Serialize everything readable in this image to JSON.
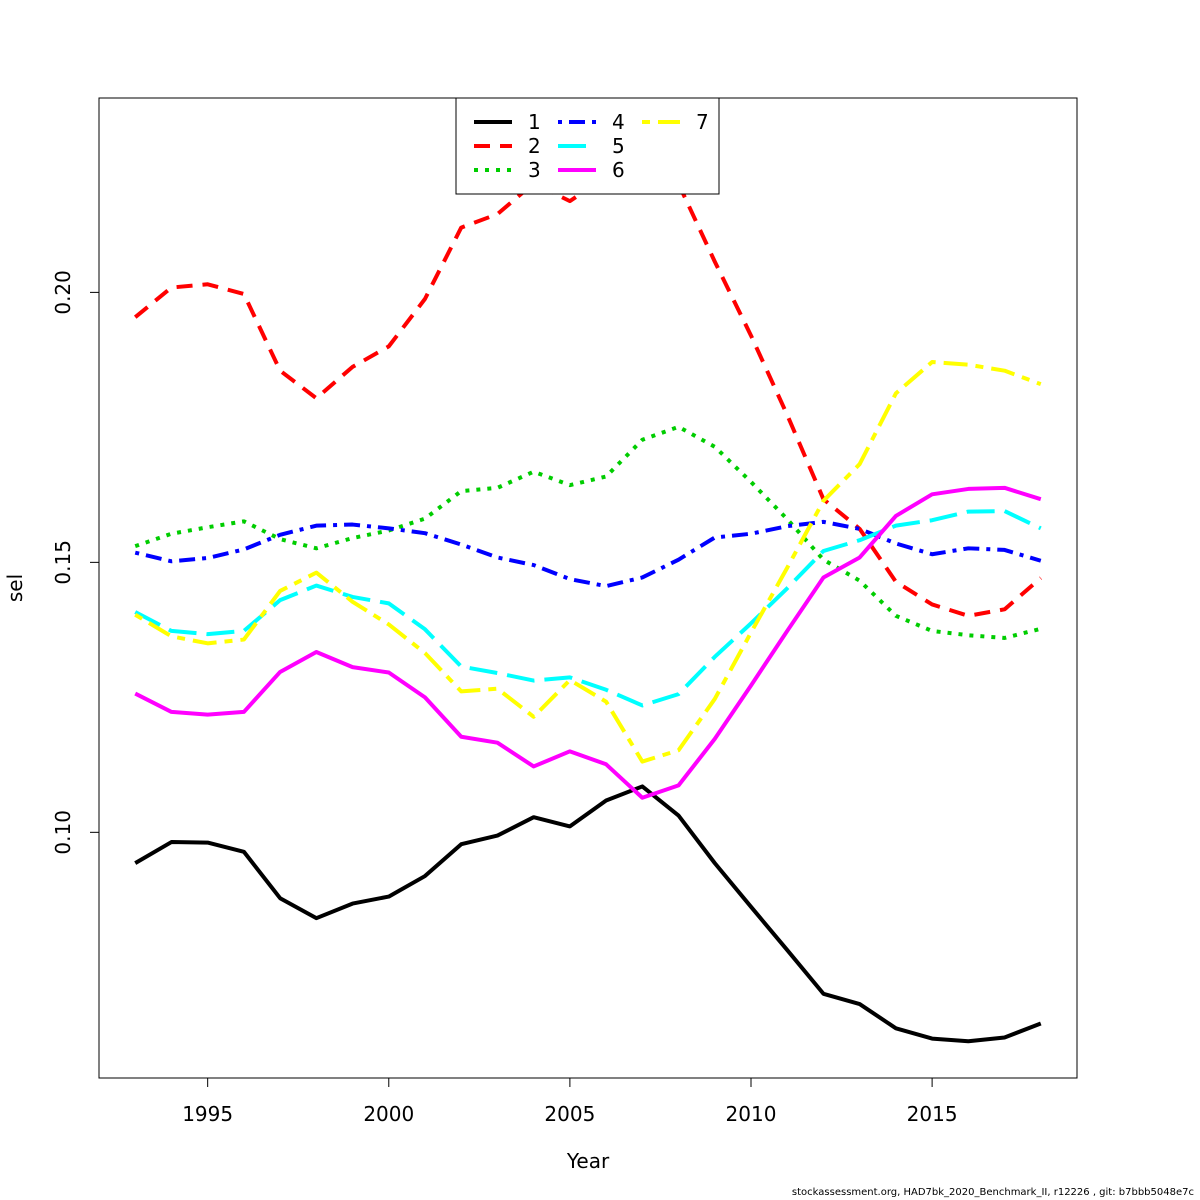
{
  "chart_data": {
    "type": "line",
    "title": "",
    "xlabel": "Year",
    "ylabel": "sel",
    "xlim": [
      1992,
      2019
    ],
    "ylim": [
      0.0545,
      0.236
    ],
    "x_ticks": [
      1995,
      2000,
      2005,
      2010,
      2015
    ],
    "y_ticks": [
      0.1,
      0.15,
      0.2
    ],
    "y_tick_labels": [
      "0.10",
      "0.15",
      "0.20"
    ],
    "grid": false,
    "legend_position": "top",
    "legend_columns": 3,
    "x": [
      1993,
      1994,
      1995,
      1996,
      1997,
      1998,
      1999,
      2000,
      2001,
      2002,
      2003,
      2004,
      2005,
      2006,
      2007,
      2008,
      2009,
      2010,
      2011,
      2012,
      2013,
      2014,
      2015,
      2016,
      2017,
      2018
    ],
    "series": [
      {
        "name": "1",
        "color": "#000000",
        "dash": "solid",
        "values": [
          0.0943,
          0.0982,
          0.0981,
          0.0964,
          0.0878,
          0.0841,
          0.0868,
          0.0881,
          0.0919,
          0.0978,
          0.0994,
          0.1028,
          0.1011,
          0.1059,
          0.1085,
          0.1031,
          0.0943,
          0.0862,
          0.0782,
          0.0701,
          0.0682,
          0.0637,
          0.0618,
          0.0613,
          0.062,
          0.0646
        ]
      },
      {
        "name": "2",
        "color": "#ff0000",
        "dash": "dashed",
        "values": [
          0.1954,
          0.2009,
          0.2015,
          0.1997,
          0.1855,
          0.1804,
          0.1862,
          0.19,
          0.1988,
          0.212,
          0.2145,
          0.2202,
          0.2169,
          0.2215,
          0.2235,
          0.2201,
          0.2057,
          0.192,
          0.1773,
          0.1617,
          0.1562,
          0.1464,
          0.1422,
          0.1401,
          0.1413,
          0.1471
        ]
      },
      {
        "name": "3",
        "color": "#00cd00",
        "dash": "dotted",
        "values": [
          0.153,
          0.1553,
          0.1565,
          0.1576,
          0.1543,
          0.1526,
          0.1545,
          0.1559,
          0.1581,
          0.1632,
          0.1638,
          0.1668,
          0.1643,
          0.1659,
          0.1727,
          0.1751,
          0.1714,
          0.1649,
          0.158,
          0.1505,
          0.1466,
          0.1401,
          0.1373,
          0.1365,
          0.136,
          0.1377
        ]
      },
      {
        "name": "4",
        "color": "#0000ff",
        "dash": "dotdash",
        "values": [
          0.1518,
          0.1502,
          0.1508,
          0.1524,
          0.1551,
          0.1568,
          0.157,
          0.1563,
          0.1554,
          0.1533,
          0.1509,
          0.1495,
          0.1469,
          0.1456,
          0.1472,
          0.1505,
          0.1546,
          0.1553,
          0.1567,
          0.1575,
          0.1562,
          0.1535,
          0.1515,
          0.1526,
          0.1523,
          0.1503
        ]
      },
      {
        "name": "5",
        "color": "#00ffff",
        "dash": "longdash",
        "values": [
          0.1408,
          0.1373,
          0.1367,
          0.1373,
          0.143,
          0.1457,
          0.1436,
          0.1424,
          0.1376,
          0.1307,
          0.1295,
          0.1281,
          0.1287,
          0.1264,
          0.1235,
          0.1256,
          0.1325,
          0.1387,
          0.1452,
          0.1521,
          0.1541,
          0.1568,
          0.1578,
          0.1594,
          0.1595,
          0.1563
        ]
      },
      {
        "name": "6",
        "color": "#ff00ff",
        "dash": "solid",
        "values": [
          0.1257,
          0.1223,
          0.1218,
          0.1223,
          0.1297,
          0.1334,
          0.1306,
          0.1296,
          0.125,
          0.1177,
          0.1166,
          0.1122,
          0.115,
          0.1126,
          0.1064,
          0.1087,
          0.1173,
          0.1272,
          0.1373,
          0.1472,
          0.1509,
          0.1586,
          0.1626,
          0.1636,
          0.1638,
          0.1617
        ]
      },
      {
        "name": "7",
        "color": "#ffff00",
        "dash": "twodash",
        "values": [
          0.1403,
          0.1363,
          0.135,
          0.1357,
          0.1447,
          0.1481,
          0.1427,
          0.1385,
          0.1332,
          0.1261,
          0.1266,
          0.1214,
          0.1282,
          0.1242,
          0.1131,
          0.1152,
          0.1247,
          0.137,
          0.149,
          0.1614,
          0.1682,
          0.1813,
          0.1871,
          0.1866,
          0.1855,
          0.183
        ]
      }
    ]
  },
  "footer_text": "stockassessment.org, HAD7bk_2020_Benchmark_II, r12226 , git: b7bbb5048e7c"
}
